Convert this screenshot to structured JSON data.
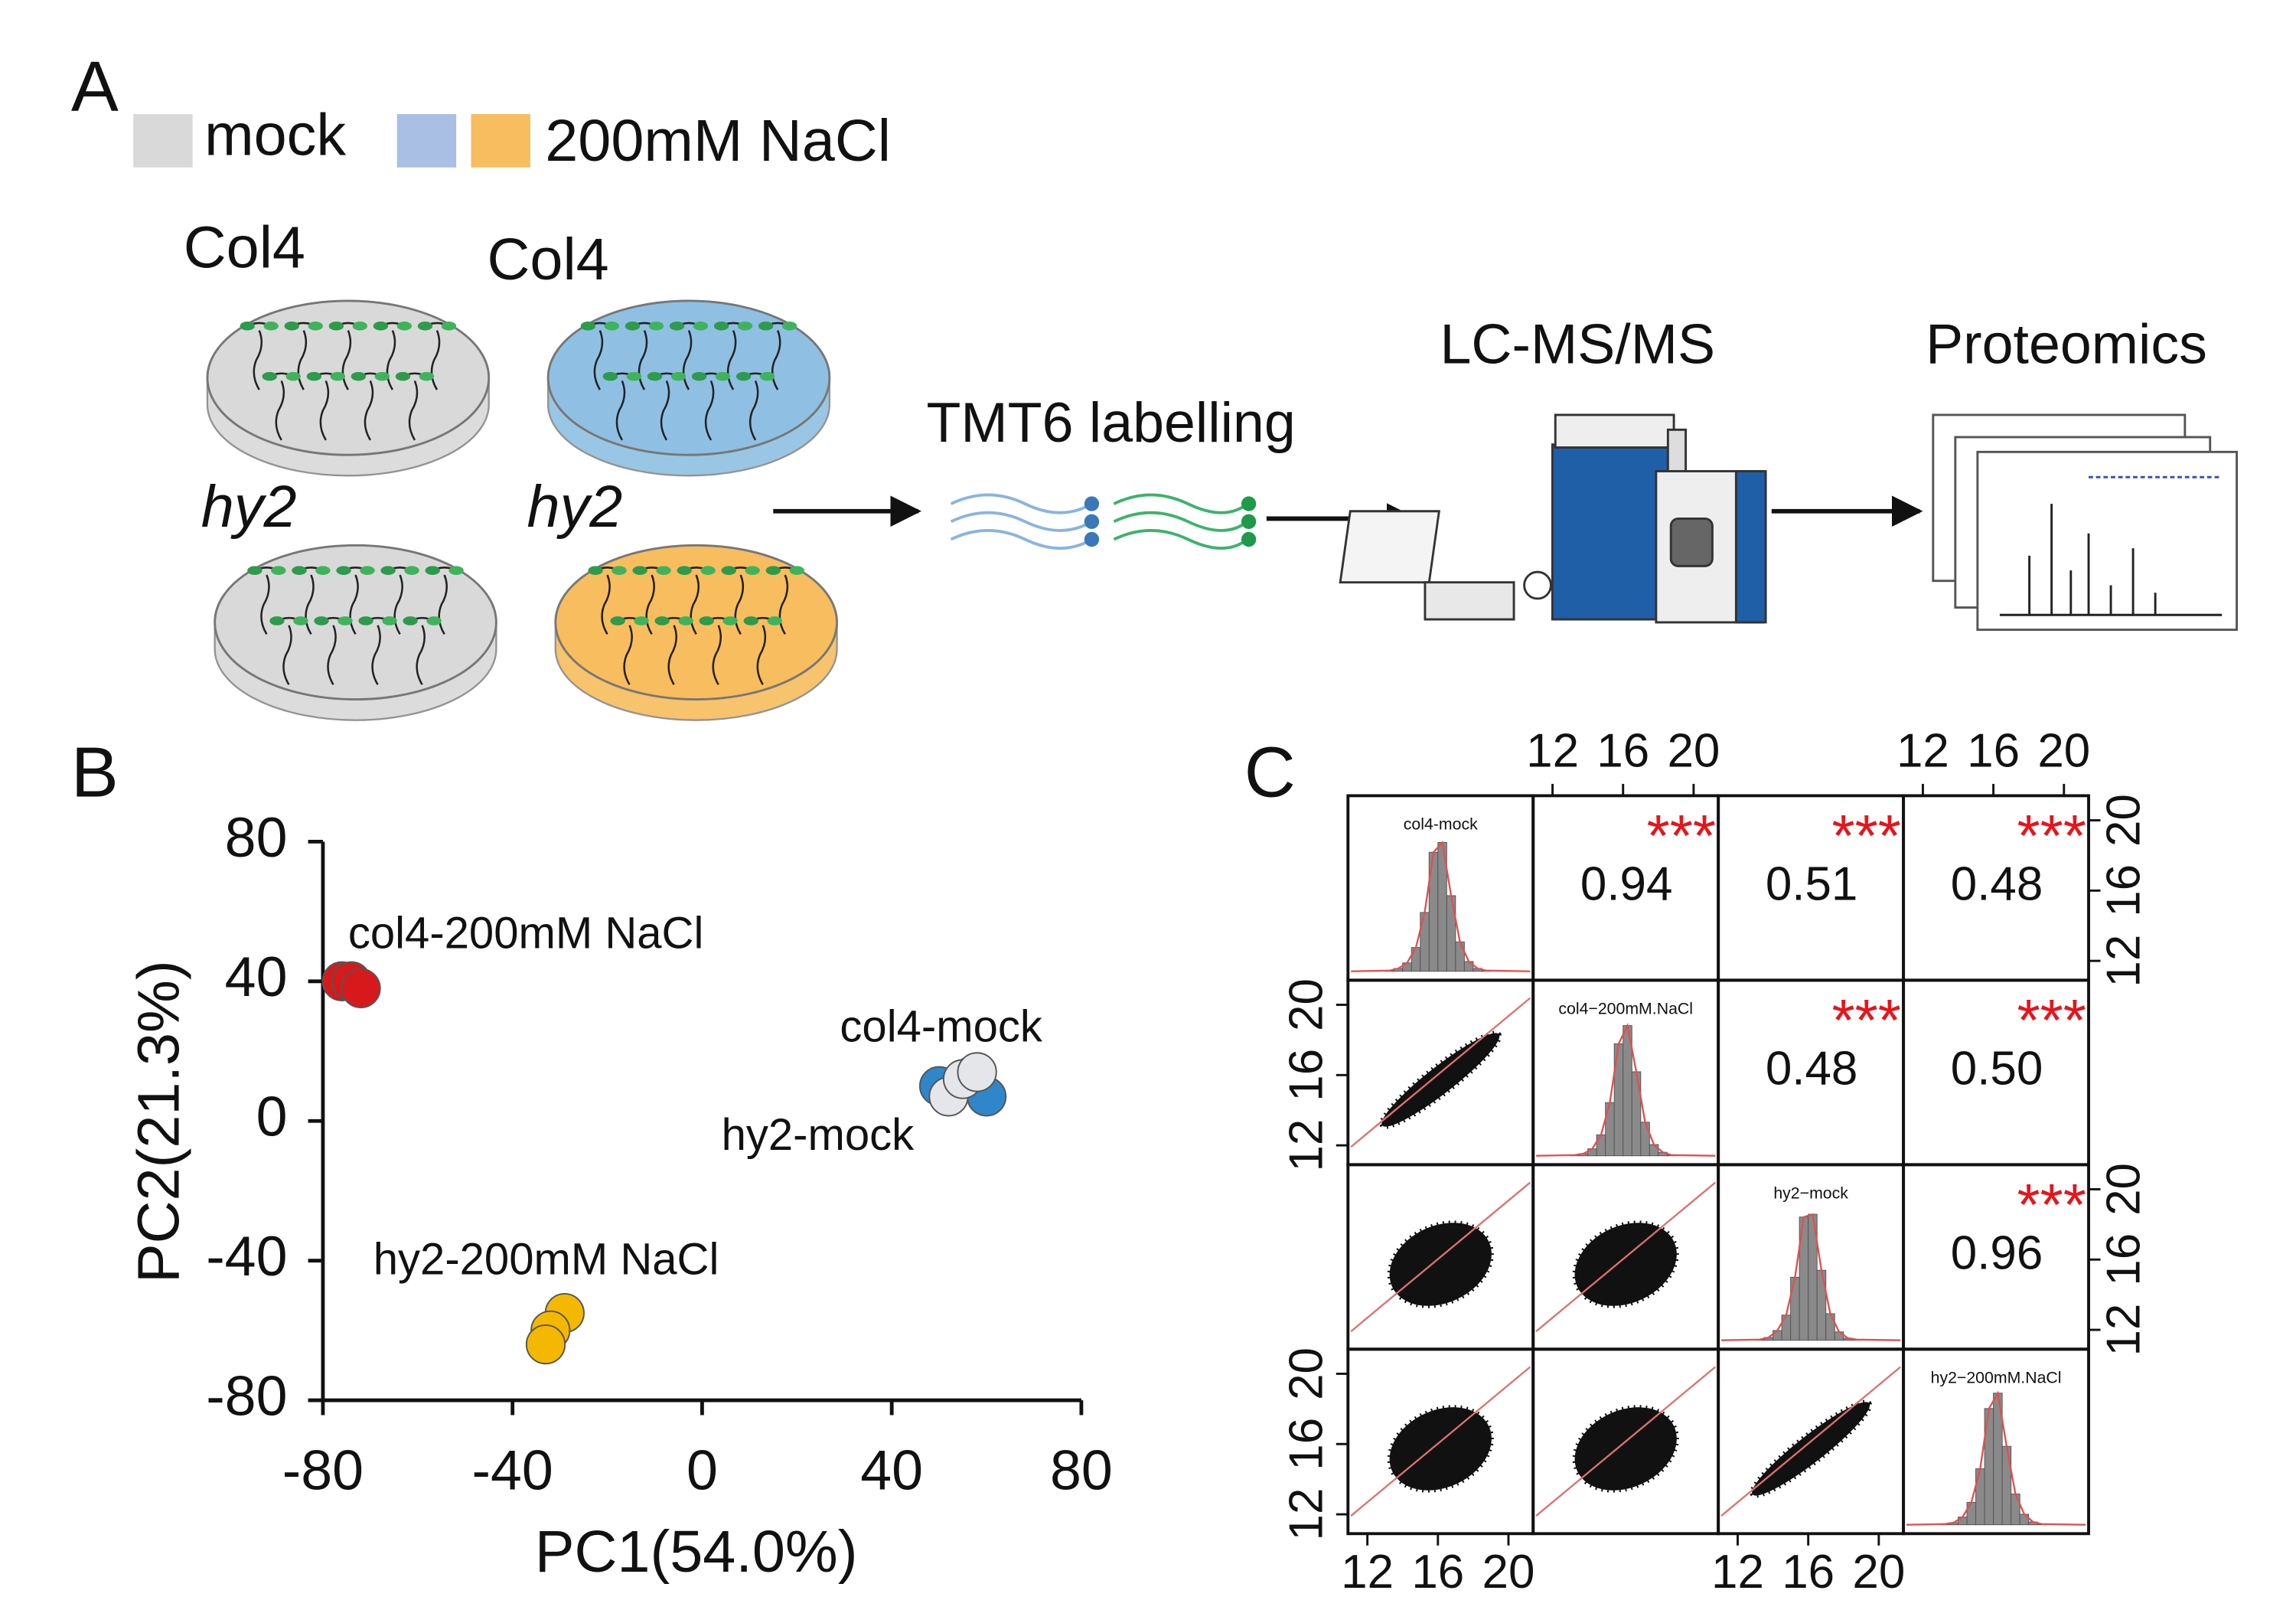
{
  "panel_a": {
    "label": "A",
    "legend": [
      {
        "text": "mock",
        "colors": [
          "#d9d9d9"
        ]
      },
      {
        "text": "200mM NaCl",
        "colors": [
          "#a9bfe3",
          "#f8bd5e"
        ]
      }
    ],
    "dishes": [
      {
        "label": "Col4",
        "color": "#d9d9d9"
      },
      {
        "label": "Col4",
        "color": "#8fc0e3"
      },
      {
        "label": "hy2",
        "color": "#d9d9d9"
      },
      {
        "label": "hy2",
        "color": "#f8bd5e"
      }
    ],
    "steps": [
      "TMT6 labelling",
      "LC-MS/MS",
      "Proteomics"
    ]
  },
  "chart_data": [
    {
      "type": "scatter",
      "label": "B",
      "xlabel": "PC1(54.0%)",
      "ylabel": "PC2(21.3%)",
      "xlim": [
        -80,
        80
      ],
      "xticks": [
        -80,
        -40,
        0,
        40,
        80
      ],
      "ylim": [
        -80,
        80
      ],
      "yticks": [
        -80,
        -40,
        0,
        40,
        80
      ],
      "series": [
        {
          "name": "col4-200mM NaCl",
          "color": "#d7191c",
          "x": [
            -76,
            -74,
            -72
          ],
          "y": [
            40,
            40,
            38
          ]
        },
        {
          "name": "col4-mock",
          "color": "#2f86c8",
          "x": [
            50,
            57,
            60
          ],
          "y": [
            10,
            13,
            7
          ]
        },
        {
          "name": "hy2-mock",
          "color": "#e4e6ea",
          "x": [
            52,
            55,
            58
          ],
          "y": [
            7,
            12,
            14
          ]
        },
        {
          "name": "hy2-200mM NaCl",
          "color": "#f5b800",
          "x": [
            -29,
            -32,
            -33
          ],
          "y": [
            -55,
            -60,
            -64
          ]
        }
      ]
    },
    {
      "type": "pairs",
      "label": "C",
      "variables": [
        "col4-mock",
        "col4−200mM.NaCl",
        "hy2−mock",
        "hy2−200mM.NaCl"
      ],
      "xlim": [
        10.9,
        21.4
      ],
      "xticks": [
        12,
        16,
        20
      ],
      "ylim": [
        10.9,
        21.4
      ],
      "yticks": [
        12,
        16,
        20
      ],
      "values": [
        0.94,
        0.51,
        0.48,
        0.48,
        0.5,
        0.96
      ],
      "value_labels": [
        "0.94",
        "0.51",
        "0.48",
        "0.48",
        "0.50",
        "0.96"
      ],
      "significance": [
        "***",
        "***",
        "***",
        "***",
        "***",
        "***"
      ],
      "hist_ylim": [
        0,
        1000
      ],
      "histograms": [
        {
          "bins": [
            13,
            13.5,
            14,
            14.5,
            15,
            15.5,
            16,
            16.5,
            17,
            17.5,
            18,
            18.5,
            19
          ],
          "counts": [
            5,
            20,
            60,
            170,
            420,
            850,
            920,
            540,
            210,
            70,
            20,
            5
          ]
        },
        {
          "bins": [
            13,
            13.5,
            14,
            14.5,
            15,
            15.5,
            16,
            16.5,
            17,
            17.5,
            18,
            18.5,
            19
          ],
          "counts": [
            5,
            15,
            50,
            150,
            380,
            800,
            930,
            600,
            240,
            80,
            25,
            5
          ]
        },
        {
          "bins": [
            13,
            13.5,
            14,
            14.5,
            15,
            15.5,
            16,
            16.5,
            17,
            17.5,
            18,
            18.5,
            19
          ],
          "counts": [
            5,
            20,
            70,
            180,
            450,
            880,
            900,
            500,
            190,
            60,
            15,
            5
          ]
        },
        {
          "bins": [
            13,
            13.5,
            14,
            14.5,
            15,
            15.5,
            16,
            16.5,
            17,
            17.5,
            18,
            18.5,
            19
          ],
          "counts": [
            5,
            15,
            55,
            160,
            400,
            830,
            940,
            560,
            220,
            75,
            20,
            5
          ]
        }
      ]
    }
  ]
}
